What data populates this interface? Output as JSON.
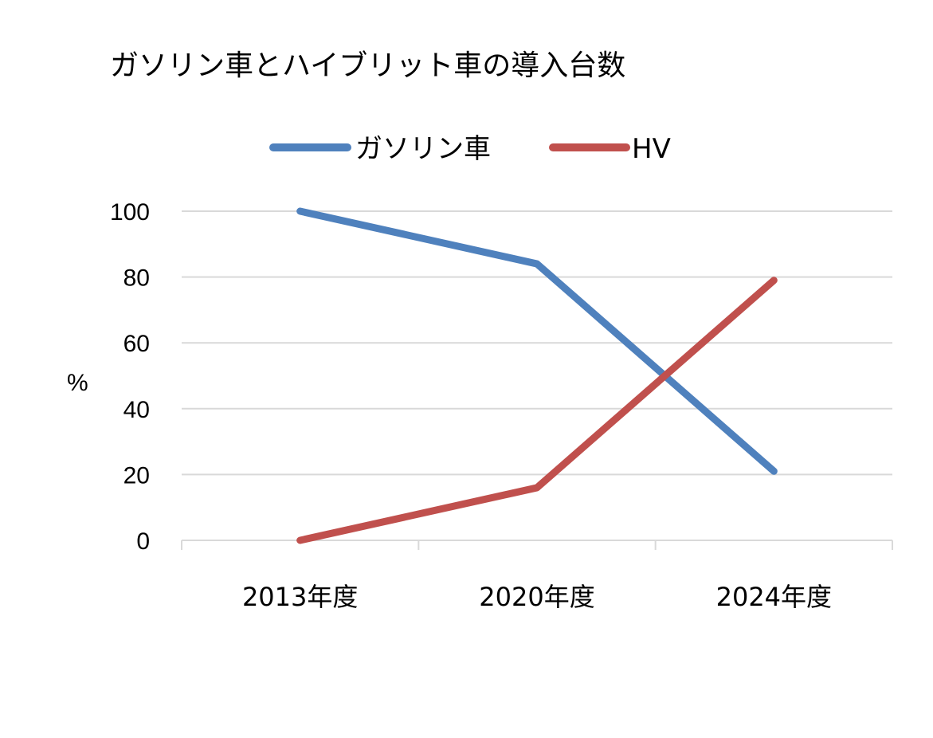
{
  "chart_data": {
    "type": "line",
    "title": "ガソリン車とハイブリット車の導入台数",
    "xlabel": "",
    "ylabel": "%",
    "categories": [
      "2013年度",
      "2020年度",
      "2024年度"
    ],
    "ylim": [
      0,
      100
    ],
    "yticks": [
      "0",
      "20",
      "40",
      "60",
      "80",
      "100"
    ],
    "grid": true,
    "legend_position": "top",
    "series": [
      {
        "name": "ガソリン車",
        "values": [
          100,
          84,
          21
        ],
        "color": "#4f81bd"
      },
      {
        "name": "HV",
        "values": [
          0,
          16,
          79
        ],
        "color": "#c0504d"
      }
    ]
  }
}
